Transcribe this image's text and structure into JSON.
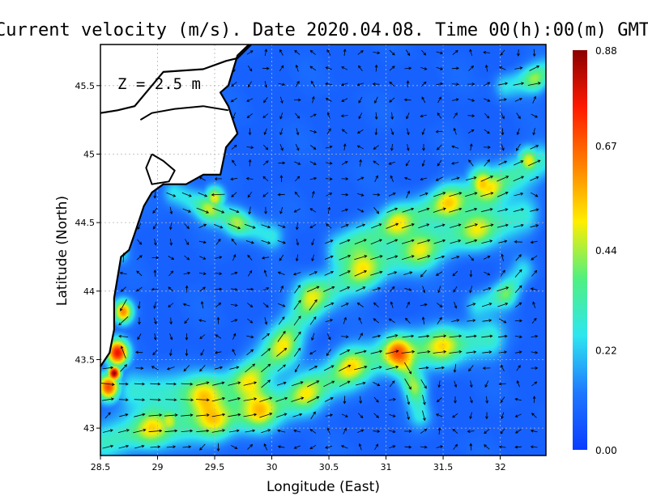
{
  "chart_data": {
    "type": "heatmap",
    "title": "Current velocity (m/s). Date 2020.04.08. Time 00(h):00(m) GMT",
    "xlabel": "Longitude (East)",
    "ylabel": "Latitude (North)",
    "depth_label": "Z = 2.5 m",
    "xlim": [
      28.5,
      32.4
    ],
    "ylim": [
      42.8,
      45.8
    ],
    "x_ticks": [
      28.5,
      29,
      29.5,
      30,
      30.5,
      31,
      31.5,
      32
    ],
    "x_tick_labels": [
      "28.5",
      "29",
      "29.5",
      "30",
      "30.5",
      "31",
      "31.5",
      "32"
    ],
    "y_ticks": [
      43,
      43.5,
      44,
      44.5,
      45,
      45.5
    ],
    "y_tick_labels": [
      "43",
      "43.5",
      "44",
      "44.5",
      "45",
      "45.5"
    ],
    "grid": true,
    "colorbar": {
      "min": 0.0,
      "max": 0.88,
      "ticks": [
        0.0,
        0.22,
        0.44,
        0.67,
        0.88
      ],
      "tick_labels": [
        "0.00",
        "0.22",
        "0.44",
        "0.67",
        "0.88"
      ],
      "colors": [
        "#0a3cff",
        "#1e78ff",
        "#2ee6ef",
        "#50f080",
        "#ffee00",
        "#ff8000",
        "#ff1a00",
        "#8a0000"
      ]
    },
    "background_speed": 0.08,
    "currents": [
      {
        "name": "",
        "speed": 0.36,
        "width_deg": 0.1,
        "path": [
          [
            28.55,
            42.9
          ],
          [
            28.95,
            43.0
          ],
          [
            29.5,
            43.05
          ],
          [
            29.9,
            43.12
          ],
          [
            30.3,
            43.25
          ],
          [
            30.7,
            43.45
          ],
          [
            31.1,
            43.55
          ],
          [
            31.5,
            43.6
          ],
          [
            31.9,
            43.65
          ]
        ]
      },
      {
        "name": "",
        "speed": 0.34,
        "width_deg": 0.1,
        "path": [
          [
            28.8,
            43.28
          ],
          [
            29.4,
            43.25
          ],
          [
            29.8,
            43.35
          ],
          [
            30.1,
            43.6
          ],
          [
            30.35,
            43.95
          ],
          [
            30.8,
            44.15
          ],
          [
            31.3,
            44.3
          ],
          [
            31.8,
            44.45
          ],
          [
            32.2,
            44.55
          ]
        ]
      },
      {
        "name": "",
        "speed": 0.36,
        "width_deg": 0.09,
        "path": [
          [
            30.6,
            44.3
          ],
          [
            31.1,
            44.5
          ],
          [
            31.55,
            44.65
          ],
          [
            31.9,
            44.75
          ],
          [
            32.35,
            44.95
          ]
        ]
      },
      {
        "name": "",
        "speed": 0.32,
        "width_deg": 0.07,
        "path": [
          [
            29.15,
            44.72
          ],
          [
            29.45,
            44.6
          ],
          [
            29.7,
            44.5
          ],
          [
            30.0,
            44.4
          ]
        ]
      },
      {
        "name": "",
        "speed": 0.3,
        "width_deg": 0.07,
        "path": [
          [
            31.1,
            43.55
          ],
          [
            31.25,
            43.3
          ],
          [
            31.3,
            43.1
          ]
        ]
      },
      {
        "name": "",
        "speed": 0.28,
        "width_deg": 0.07,
        "path": [
          [
            31.8,
            43.9
          ],
          [
            32.05,
            43.98
          ],
          [
            32.2,
            44.15
          ]
        ]
      },
      {
        "name": "",
        "speed": 0.3,
        "width_deg": 0.07,
        "path": [
          [
            32.05,
            45.5
          ],
          [
            32.3,
            45.55
          ],
          [
            32.4,
            45.6
          ]
        ]
      },
      {
        "name": "",
        "speed": 0.3,
        "width_deg": 0.05,
        "path": [
          [
            28.68,
            44.28
          ],
          [
            28.7,
            44.55
          ],
          [
            28.82,
            44.75
          ],
          [
            29.0,
            44.9
          ]
        ]
      }
    ],
    "hotspots": [
      {
        "lon": 28.65,
        "lat": 43.55,
        "speed": 0.78,
        "radius_deg": 0.07
      },
      {
        "lon": 28.57,
        "lat": 43.3,
        "speed": 0.7,
        "radius_deg": 0.07
      },
      {
        "lon": 28.7,
        "lat": 43.85,
        "speed": 0.62,
        "radius_deg": 0.06
      },
      {
        "lon": 28.62,
        "lat": 43.4,
        "speed": 0.88,
        "radius_deg": 0.04
      },
      {
        "lon": 31.85,
        "lat": 44.78,
        "speed": 0.55,
        "radius_deg": 0.09
      },
      {
        "lon": 29.5,
        "lat": 44.68,
        "speed": 0.5,
        "radius_deg": 0.06
      },
      {
        "lon": 29.1,
        "lat": 43.05,
        "speed": 0.48,
        "radius_deg": 0.08
      },
      {
        "lon": 32.25,
        "lat": 44.95,
        "speed": 0.5,
        "radius_deg": 0.07
      }
    ],
    "land_polygon": [
      [
        28.5,
        45.8
      ],
      [
        29.8,
        45.8
      ],
      [
        29.7,
        45.72
      ],
      [
        29.62,
        45.5
      ],
      [
        29.55,
        45.45
      ],
      [
        29.62,
        45.35
      ],
      [
        29.7,
        45.15
      ],
      [
        29.6,
        45.05
      ],
      [
        29.55,
        44.85
      ],
      [
        29.4,
        44.85
      ],
      [
        29.25,
        44.78
      ],
      [
        29.05,
        44.78
      ],
      [
        28.95,
        44.72
      ],
      [
        28.88,
        44.62
      ],
      [
        28.8,
        44.42
      ],
      [
        28.75,
        44.3
      ],
      [
        28.68,
        44.25
      ],
      [
        28.62,
        43.95
      ],
      [
        28.62,
        43.72
      ],
      [
        28.58,
        43.55
      ],
      [
        28.5,
        43.45
      ]
    ],
    "coastline": [
      [
        29.82,
        45.8
      ],
      [
        29.7,
        45.7
      ],
      [
        29.6,
        45.68
      ],
      [
        29.4,
        45.62
      ],
      [
        29.05,
        45.6
      ],
      [
        28.95,
        45.5
      ],
      [
        28.8,
        45.35
      ],
      [
        28.65,
        45.32
      ],
      [
        28.5,
        45.3
      ]
    ],
    "danube_delta": [
      [
        29.62,
        45.32
      ],
      [
        29.4,
        45.35
      ],
      [
        29.15,
        45.33
      ],
      [
        28.95,
        45.3
      ],
      [
        28.85,
        45.25
      ]
    ],
    "lagoon": [
      [
        28.95,
        45.0
      ],
      [
        29.05,
        44.95
      ],
      [
        29.15,
        44.88
      ],
      [
        29.1,
        44.8
      ],
      [
        28.95,
        44.78
      ],
      [
        28.9,
        44.9
      ],
      [
        28.95,
        45.0
      ]
    ]
  }
}
